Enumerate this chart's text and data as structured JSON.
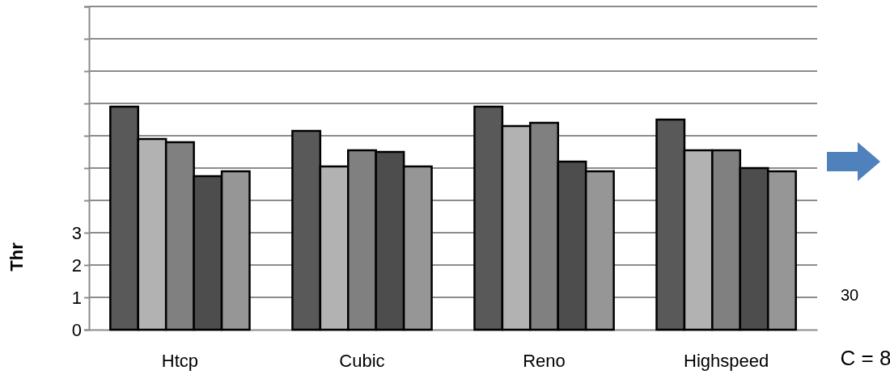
{
  "chart_data": {
    "type": "bar",
    "ylabel": "Thr",
    "categories": [
      "Htcp",
      "Cubic",
      "Reno",
      "Highspeed"
    ],
    "series": [
      {
        "color": "#595959",
        "values": [
          6.9,
          6.15,
          6.9,
          6.5
        ]
      },
      {
        "color": "#b2b2b2",
        "values": [
          5.9,
          5.05,
          6.3,
          5.55
        ]
      },
      {
        "color": "#808080",
        "values": [
          5.8,
          5.55,
          6.4,
          5.55
        ]
      },
      {
        "color": "#4d4d4d",
        "values": [
          4.75,
          5.5,
          5.2,
          5.0
        ]
      },
      {
        "color": "#969696",
        "values": [
          4.9,
          5.05,
          4.9,
          4.9
        ]
      }
    ],
    "ylim": [
      0,
      10
    ],
    "yticks": [
      0,
      1,
      2,
      3,
      {
        "value": 4,
        "label": null
      },
      {
        "value": 5,
        "label": null
      },
      {
        "value": 6,
        "label": null
      },
      {
        "value": 7,
        "label": null
      },
      {
        "value": 8,
        "label": null
      },
      {
        "value": 9,
        "label": null
      },
      {
        "value": 10,
        "label": null
      }
    ],
    "grid": "y",
    "annotations": [
      "30",
      "C = 8"
    ]
  }
}
